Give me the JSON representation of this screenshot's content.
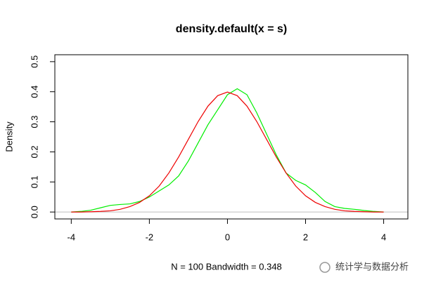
{
  "chart_data": {
    "type": "line",
    "title": "density.default(x = s)",
    "x_label": "N = 100   Bandwidth = 0.348",
    "y_label": "Density",
    "watermark": "统计学与数据分析",
    "x": [
      -4,
      -3.75,
      -3.5,
      -3.25,
      -3,
      -2.75,
      -2.5,
      -2.25,
      -2,
      -1.75,
      -1.5,
      -1.25,
      -1,
      -0.75,
      -0.5,
      -0.25,
      0,
      0.25,
      0.5,
      0.75,
      1,
      1.25,
      1.5,
      1.75,
      2,
      2.25,
      2.5,
      2.75,
      3,
      3.25,
      3.5,
      3.75,
      4
    ],
    "series": [
      {
        "color": "#00ee00",
        "values": [
          0.0,
          0.002,
          0.006,
          0.014,
          0.022,
          0.025,
          0.027,
          0.035,
          0.05,
          0.07,
          0.09,
          0.12,
          0.17,
          0.23,
          0.29,
          0.34,
          0.39,
          0.41,
          0.39,
          0.33,
          0.26,
          0.19,
          0.13,
          0.105,
          0.09,
          0.065,
          0.035,
          0.018,
          0.012,
          0.009,
          0.005,
          0.002,
          0.0
        ]
      },
      {
        "color": "#ee0000",
        "values": [
          0.0,
          0.0,
          0.001,
          0.002,
          0.004,
          0.009,
          0.018,
          0.032,
          0.054,
          0.086,
          0.13,
          0.183,
          0.242,
          0.301,
          0.352,
          0.387,
          0.399,
          0.387,
          0.352,
          0.301,
          0.242,
          0.183,
          0.13,
          0.086,
          0.054,
          0.032,
          0.018,
          0.009,
          0.004,
          0.002,
          0.001,
          0.0,
          0.0
        ]
      }
    ],
    "xlim": [
      -4.42,
      4.62
    ],
    "xticks": [
      -4,
      -2,
      0,
      2,
      4
    ],
    "ylim": [
      -0.023,
      0.523
    ],
    "yticks": [
      {
        "value": 0,
        "label": "0.0"
      },
      0.1,
      0.2,
      0.3,
      0.4,
      0.5
    ]
  }
}
